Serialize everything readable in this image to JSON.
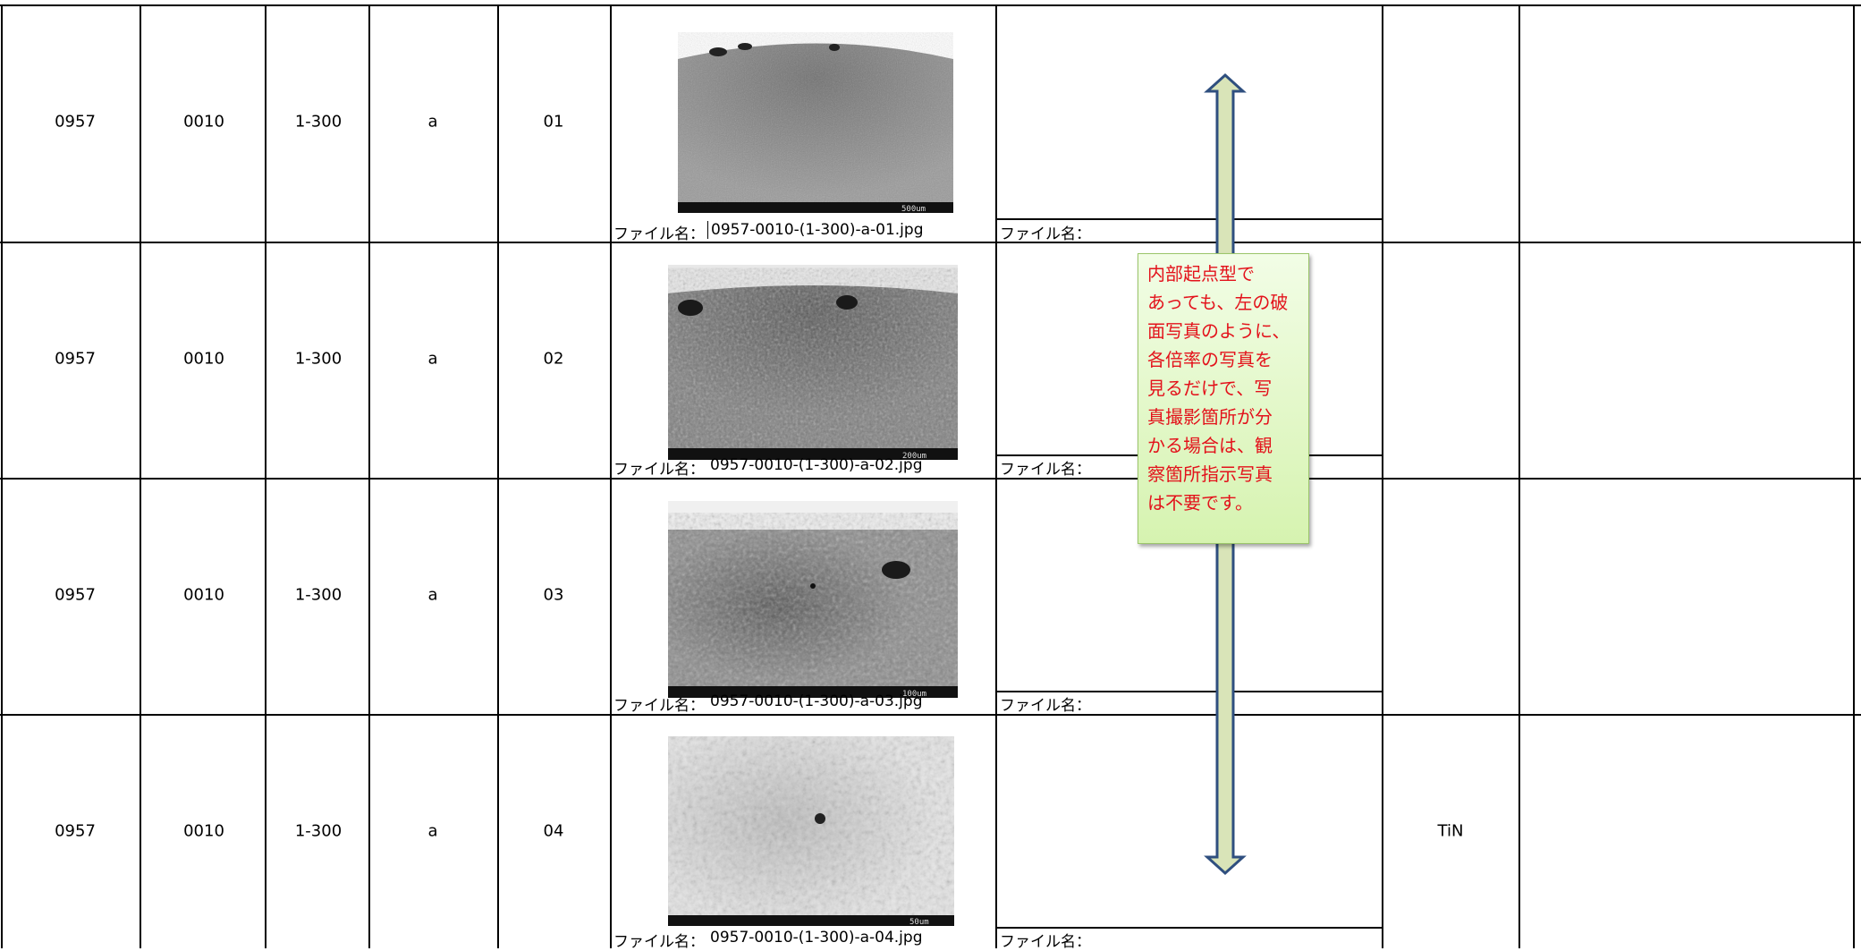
{
  "rows": [
    {
      "c1": "0957",
      "c2": "0010",
      "c3": "1-300",
      "c4": "a",
      "c5": "01",
      "photo_label": "ファイル名：",
      "photo_file": "0957-0010-(1-300)-a-01.jpg",
      "right_label": "ファイル名：",
      "coating": "",
      "scale": "500um"
    },
    {
      "c1": "0957",
      "c2": "0010",
      "c3": "1-300",
      "c4": "a",
      "c5": "02",
      "photo_label": "ファイル名：",
      "photo_file": "0957-0010-(1-300)-a-02.jpg",
      "right_label": "ファイル名：",
      "coating": "",
      "scale": "200um"
    },
    {
      "c1": "0957",
      "c2": "0010",
      "c3": "1-300",
      "c4": "a",
      "c5": "03",
      "photo_label": "ファイル名：",
      "photo_file": "0957-0010-(1-300)-a-03.jpg",
      "right_label": "ファイル名：",
      "coating": "",
      "scale": "100um"
    },
    {
      "c1": "0957",
      "c2": "0010",
      "c3": "1-300",
      "c4": "a",
      "c5": "04",
      "photo_label": "ファイル名：",
      "photo_file": "0957-0010-(1-300)-a-04.jpg",
      "right_label": "ファイル名：",
      "coating": "TiN",
      "scale": "50um"
    }
  ],
  "note": {
    "text": "内部起点型で\nあっても、左の破\n面写真のように、\n各倍率の写真を\n見るだけで、写\n真撮影箇所が分\nかる場合は、観\n察箇所指示写真\nは不要です。",
    "text_color": "#e3121b",
    "fill_color": "#d6f3b0"
  },
  "arrow": {
    "fill_color": "#d9e4b8",
    "stroke_color": "#2f4f7f",
    "direction": "double-vertical"
  }
}
